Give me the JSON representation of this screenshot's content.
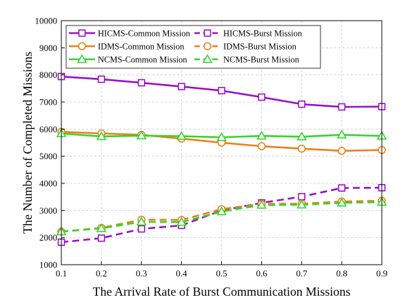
{
  "chart_data": {
    "type": "line",
    "xlabel": "The Arrival Rate of Burst Communication Missions",
    "ylabel": "The Number of Completed Missions",
    "xlim": [
      0.1,
      0.9
    ],
    "ylim": [
      1000,
      10000
    ],
    "x_ticks": [
      "0.1",
      "0.2",
      "0.3",
      "0.4",
      "0.5",
      "0.6",
      "0.7",
      "0.8",
      "0.9"
    ],
    "y_ticks": [
      "1000",
      "2000",
      "3000",
      "4000",
      "5000",
      "6000",
      "7000",
      "8000",
      "9000",
      "10000"
    ],
    "grid": true,
    "legend_position": "top",
    "x": [
      0.1,
      0.2,
      0.3,
      0.4,
      0.5,
      0.6,
      0.7,
      0.8,
      0.9
    ],
    "series": [
      {
        "name": "HICMS-Common Mission",
        "color": "#9b0fc4",
        "marker": "square",
        "dashed": false,
        "values": [
          7940,
          7840,
          7710,
          7570,
          7420,
          7180,
          6920,
          6820,
          6830
        ]
      },
      {
        "name": "HICMS-Burst Mission",
        "color": "#9b0fc4",
        "marker": "square",
        "dashed": true,
        "values": [
          1830,
          1980,
          2320,
          2450,
          3000,
          3280,
          3510,
          3830,
          3840
        ]
      },
      {
        "name": "IDMS-Common Mission",
        "color": "#f07d12",
        "marker": "circle",
        "dashed": false,
        "values": [
          5900,
          5840,
          5790,
          5650,
          5500,
          5370,
          5280,
          5200,
          5230
        ]
      },
      {
        "name": "IDMS-Burst Mission",
        "color": "#f07d12",
        "marker": "circle",
        "dashed": true,
        "values": [
          2220,
          2360,
          2660,
          2650,
          3050,
          3240,
          3250,
          3330,
          3360
        ]
      },
      {
        "name": "NCMS-Common Mission",
        "color": "#33d62b",
        "marker": "triangle",
        "dashed": false,
        "values": [
          5840,
          5730,
          5760,
          5740,
          5700,
          5750,
          5720,
          5790,
          5750
        ]
      },
      {
        "name": "NCMS-Burst Mission",
        "color": "#33d62b",
        "marker": "triangle",
        "dashed": true,
        "values": [
          2220,
          2340,
          2580,
          2570,
          2960,
          3200,
          3210,
          3280,
          3310
        ]
      }
    ]
  }
}
